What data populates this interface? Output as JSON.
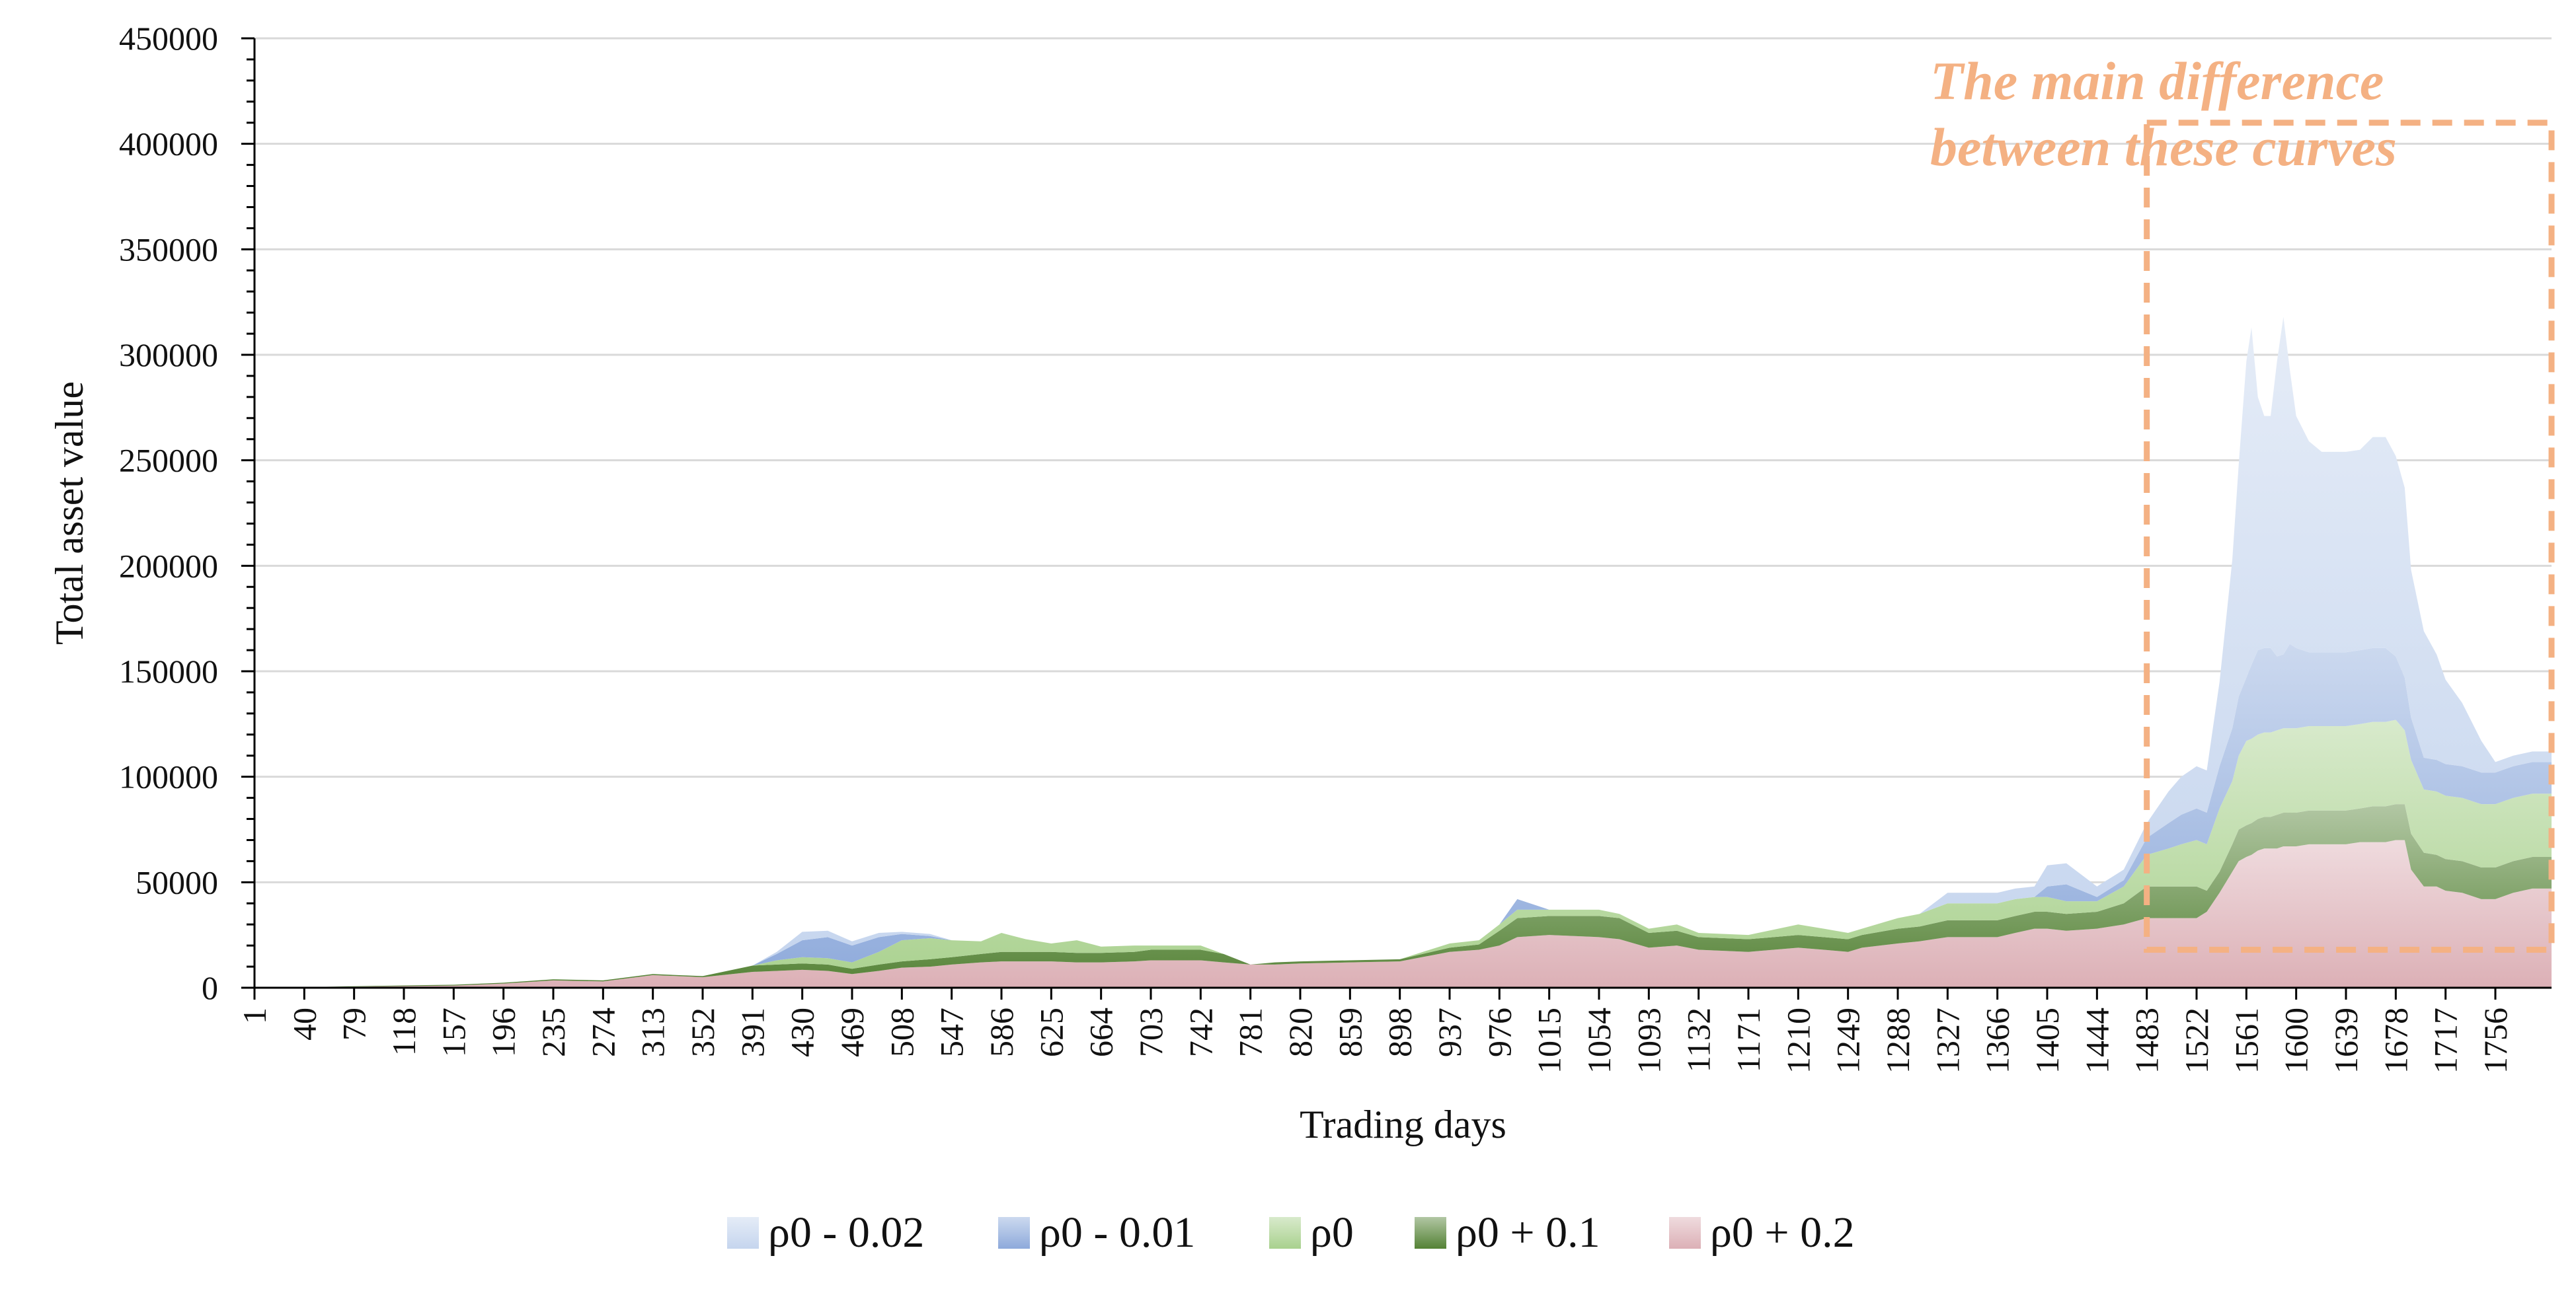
{
  "chart_data": {
    "type": "area",
    "stacked": true,
    "title": "",
    "xlabel": "Trading days",
    "ylabel": "Total asset value",
    "ylim": [
      0,
      450000
    ],
    "yticks": [
      0,
      50000,
      100000,
      150000,
      200000,
      250000,
      300000,
      350000,
      400000,
      450000
    ],
    "xlim": [
      1,
      1800
    ],
    "xticks": [
      1,
      40,
      79,
      118,
      157,
      196,
      235,
      274,
      313,
      352,
      391,
      430,
      469,
      508,
      547,
      586,
      625,
      664,
      703,
      742,
      781,
      820,
      859,
      898,
      937,
      976,
      1015,
      1054,
      1093,
      1132,
      1171,
      1210,
      1249,
      1288,
      1327,
      1366,
      1405,
      1444,
      1483,
      1522,
      1561,
      1600,
      1639,
      1678,
      1717,
      1756
    ],
    "grid": true,
    "legend_position": "bottom",
    "annotation": {
      "text_line1": "The main difference",
      "text_line2": "between these curves",
      "box_x_range": [
        1483,
        1800
      ],
      "box_y_range": [
        18000,
        410000
      ]
    },
    "x": [
      1,
      40,
      79,
      118,
      157,
      196,
      235,
      274,
      313,
      352,
      391,
      410,
      430,
      450,
      469,
      490,
      508,
      530,
      547,
      570,
      586,
      605,
      625,
      645,
      664,
      690,
      703,
      742,
      760,
      781,
      800,
      820,
      859,
      898,
      937,
      960,
      976,
      990,
      1015,
      1054,
      1070,
      1093,
      1115,
      1132,
      1171,
      1210,
      1230,
      1249,
      1260,
      1288,
      1305,
      1327,
      1345,
      1366,
      1380,
      1395,
      1405,
      1420,
      1444,
      1465,
      1483,
      1500,
      1510,
      1522,
      1530,
      1540,
      1550,
      1555,
      1561,
      1565,
      1570,
      1575,
      1580,
      1585,
      1590,
      1595,
      1600,
      1610,
      1620,
      1630,
      1639,
      1650,
      1660,
      1670,
      1678,
      1685,
      1690,
      1700,
      1710,
      1717,
      1730,
      1745,
      1756,
      1770,
      1785,
      1800
    ],
    "series": [
      {
        "name": "ρ0 + 0.2",
        "color": "#dcb0b6",
        "values": [
          0,
          200,
          500,
          800,
          1000,
          2000,
          3500,
          3000,
          6000,
          5000,
          7500,
          8000,
          8500,
          8000,
          6500,
          8000,
          9500,
          10000,
          11000,
          12000,
          12500,
          12500,
          12500,
          12000,
          12000,
          12500,
          13000,
          13000,
          12000,
          11000,
          11000,
          11500,
          12000,
          12500,
          17000,
          18000,
          20000,
          24000,
          25000,
          24000,
          23000,
          19000,
          20000,
          18000,
          17000,
          19000,
          18000,
          17000,
          19000,
          21000,
          22000,
          24000,
          24000,
          24000,
          26000,
          28000,
          28000,
          27000,
          28000,
          30000,
          33000,
          33000,
          33000,
          33000,
          36000,
          45000,
          55000,
          60000,
          62000,
          63000,
          65000,
          66000,
          66000,
          66000,
          67000,
          67000,
          67000,
          68000,
          68000,
          68000,
          68000,
          69000,
          69000,
          69000,
          70000,
          70000,
          56000,
          48000,
          48000,
          46000,
          45000,
          42000,
          42000,
          45000,
          47000,
          47000
        ]
      },
      {
        "name": "ρ0 + 0.1",
        "color": "#548235",
        "values": [
          0,
          100,
          200,
          300,
          400,
          400,
          500,
          500,
          500,
          500,
          3000,
          3000,
          3000,
          3000,
          2500,
          3000,
          3000,
          3500,
          3500,
          4000,
          4500,
          4500,
          4500,
          4500,
          4500,
          4500,
          5000,
          5000,
          4000,
          0,
          1000,
          1000,
          1000,
          1000,
          2000,
          2500,
          7000,
          9000,
          9000,
          10000,
          10000,
          7000,
          7000,
          6000,
          6000,
          6000,
          6000,
          6000,
          6000,
          7000,
          7000,
          8000,
          8000,
          8000,
          8000,
          8000,
          8000,
          8000,
          8000,
          10000,
          15000,
          15000,
          15000,
          15000,
          10000,
          10000,
          13000,
          15000,
          15000,
          15000,
          15000,
          15000,
          15000,
          16000,
          16000,
          16000,
          16000,
          16000,
          16000,
          16000,
          16000,
          16000,
          17000,
          17000,
          17000,
          17000,
          17000,
          16000,
          15000,
          15000,
          15000,
          15000,
          15000,
          15000,
          15000,
          15000
        ]
      },
      {
        "name": "ρ0",
        "color": "#a9d18e",
        "values": [
          0,
          0,
          0,
          0,
          0,
          0,
          0,
          0,
          0,
          0,
          0,
          2000,
          3000,
          3000,
          3000,
          6000,
          10000,
          10000,
          8000,
          6000,
          9000,
          6000,
          4000,
          6000,
          3000,
          3000,
          2000,
          2000,
          0,
          0,
          0,
          0,
          0,
          0,
          2000,
          2000,
          3000,
          4000,
          3000,
          3000,
          2000,
          2000,
          3000,
          2000,
          2000,
          5000,
          4000,
          3000,
          3000,
          5000,
          6000,
          8000,
          8000,
          8000,
          8000,
          7000,
          7000,
          6000,
          5000,
          8000,
          15000,
          18000,
          20000,
          22000,
          22000,
          30000,
          30000,
          35000,
          40000,
          40000,
          40000,
          40000,
          40000,
          40000,
          40000,
          40000,
          40000,
          40000,
          40000,
          40000,
          40000,
          40000,
          40000,
          40000,
          40000,
          35000,
          35000,
          30000,
          30000,
          30000,
          30000,
          30000,
          30000,
          30000,
          30000,
          30000
        ]
      },
      {
        "name": "ρ0 - 0.01",
        "color": "#8eaadb",
        "values": [
          0,
          0,
          0,
          0,
          0,
          0,
          0,
          0,
          0,
          0,
          0,
          3000,
          8000,
          10000,
          8000,
          7000,
          3000,
          1000,
          0,
          0,
          0,
          0,
          0,
          0,
          0,
          0,
          0,
          0,
          0,
          0,
          0,
          0,
          0,
          0,
          0,
          0,
          0,
          5000,
          0,
          0,
          0,
          0,
          0,
          0,
          0,
          0,
          0,
          0,
          0,
          0,
          0,
          0,
          0,
          0,
          0,
          0,
          5000,
          8000,
          2000,
          3000,
          8000,
          12000,
          14000,
          15000,
          15000,
          20000,
          25000,
          28000,
          30000,
          35000,
          40000,
          40000,
          40000,
          35000,
          35000,
          40000,
          38000,
          35000,
          35000,
          35000,
          35000,
          35000,
          35000,
          35000,
          30000,
          25000,
          20000,
          15000,
          15000,
          15000,
          15000,
          15000,
          15000,
          15000,
          15000,
          15000
        ]
      },
      {
        "name": "ρ0 - 0.02",
        "color": "#c5d5ee",
        "values": [
          0,
          0,
          0,
          0,
          0,
          0,
          0,
          0,
          0,
          0,
          0,
          1000,
          4000,
          3000,
          2000,
          2000,
          1000,
          1000,
          0,
          0,
          0,
          0,
          0,
          0,
          0,
          0,
          0,
          0,
          0,
          0,
          0,
          0,
          0,
          0,
          0,
          0,
          0,
          0,
          0,
          0,
          0,
          0,
          0,
          0,
          0,
          0,
          0,
          0,
          0,
          0,
          0,
          5000,
          5000,
          5000,
          5000,
          5000,
          10000,
          10000,
          5000,
          5000,
          7000,
          15000,
          18000,
          20000,
          20000,
          40000,
          80000,
          110000,
          150000,
          160000,
          120000,
          110000,
          110000,
          140000,
          160000,
          130000,
          110000,
          100000,
          95000,
          95000,
          95000,
          95000,
          100000,
          100000,
          95000,
          90000,
          70000,
          60000,
          50000,
          40000,
          30000,
          15000,
          5000,
          5000,
          5000,
          5000
        ]
      }
    ]
  }
}
